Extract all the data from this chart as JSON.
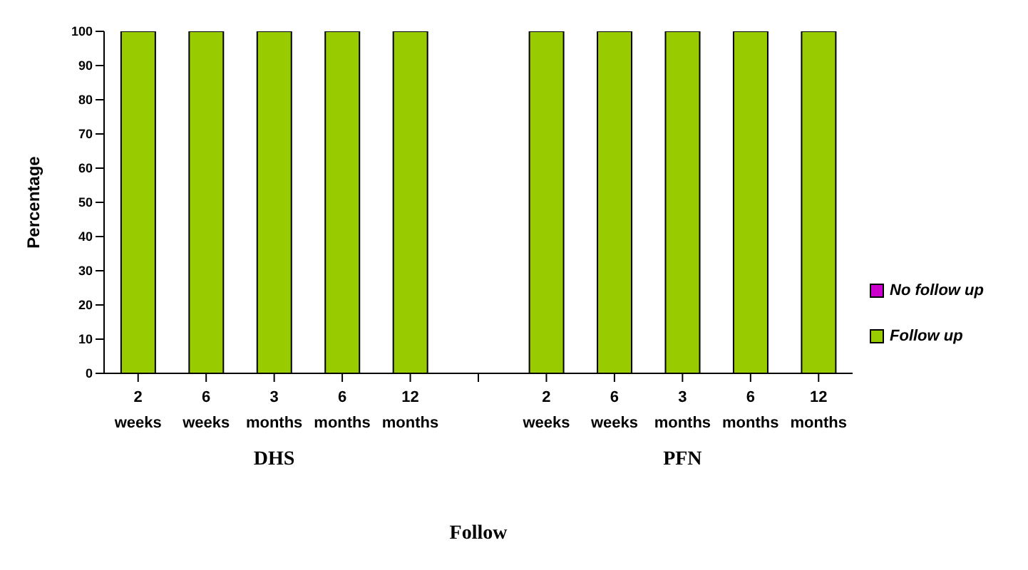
{
  "chart_data": {
    "type": "bar",
    "stacked": true,
    "xlabel": "Follow",
    "ylabel": "Percentage",
    "categories": [
      "2 weeks",
      "6 weeks",
      "3 months",
      "6 months",
      "12 months",
      null,
      "2 weeks",
      "6 weeks",
      "3 months",
      "6 months",
      "12 months"
    ],
    "series": [
      {
        "name": "Follow up",
        "color": "#99cc00",
        "values": [
          100,
          100,
          100,
          100,
          100,
          null,
          100,
          100,
          100,
          100,
          100
        ]
      },
      {
        "name": "No follow up",
        "color": "#cc00cc",
        "values": [
          0,
          0,
          0,
          0,
          0,
          null,
          0,
          0,
          0,
          0,
          0
        ]
      }
    ],
    "ylim": [
      0,
      100
    ],
    "yticks": [
      0,
      10,
      20,
      30,
      40,
      50,
      60,
      70,
      80,
      90,
      100
    ],
    "grid": false,
    "legend": "right",
    "annotations": [
      "DHS",
      "PFN"
    ]
  }
}
